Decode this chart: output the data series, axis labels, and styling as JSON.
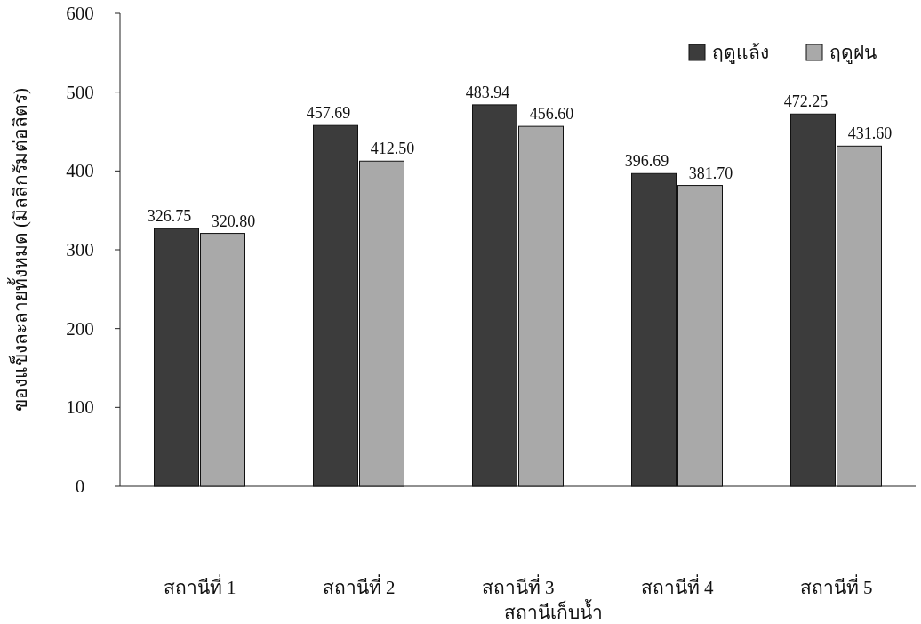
{
  "chart_data": {
    "type": "bar",
    "xlabel": "สถานีเก็บน้ำ",
    "ylabel": "ของแข็งละลายทั้งหมด (มิลลิกรัมต่อลิตร)",
    "categories": [
      "สถานีที่ 1",
      "สถานีที่ 2",
      "สถานีที่ 3",
      "สถานีที่ 4",
      "สถานีที่ 5"
    ],
    "series": [
      {
        "name": "ฤดูแล้ง",
        "color": "#3c3c3c",
        "values": [
          326.75,
          457.69,
          483.94,
          396.69,
          472.25
        ],
        "value_labels": [
          "326.75",
          "457.69",
          "483.94",
          "396.69",
          "472.25"
        ]
      },
      {
        "name": "ฤดูฝน",
        "color": "#a9a9a9",
        "values": [
          320.8,
          412.5,
          456.6,
          381.7,
          431.6
        ],
        "value_labels": [
          "320.80",
          "412.50",
          "456.60",
          "381.70",
          "431.60"
        ]
      }
    ],
    "ylim": [
      0,
      600
    ],
    "yticks": [
      0,
      100,
      200,
      300,
      400,
      500,
      600
    ],
    "legend": "top right"
  }
}
